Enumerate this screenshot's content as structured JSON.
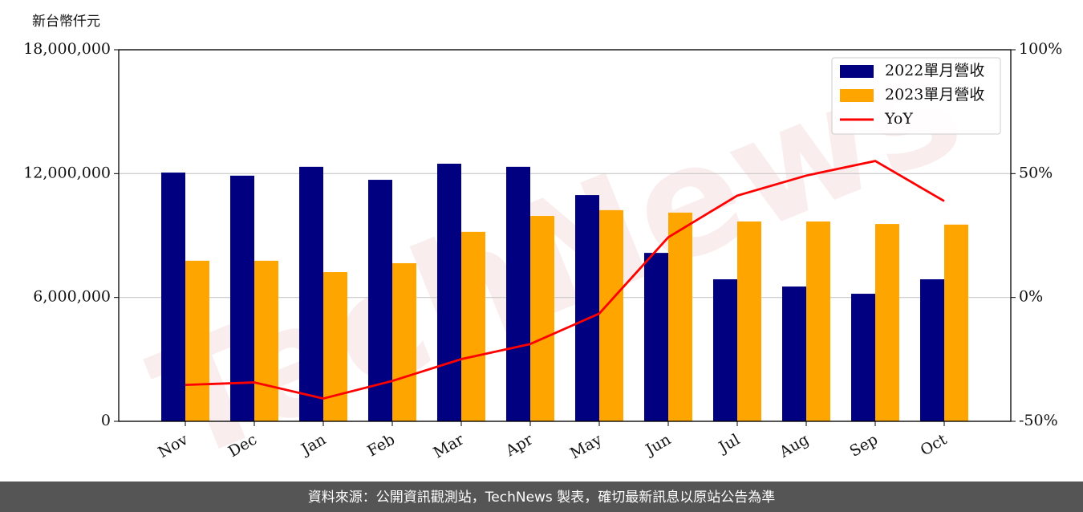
{
  "chart_data": {
    "type": "bar",
    "y_label": "新台幣仟元",
    "categories": [
      "Nov",
      "Dec",
      "Jan",
      "Feb",
      "Mar",
      "Apr",
      "May",
      "Jun",
      "Jul",
      "Aug",
      "Sep",
      "Oct"
    ],
    "series": [
      {
        "name": "2022單月營收",
        "color": "#000080",
        "type": "bar",
        "values": [
          12050000,
          11900000,
          12330000,
          11700000,
          12480000,
          12330000,
          10960000,
          8160000,
          6880000,
          6530000,
          6180000,
          6880000
        ]
      },
      {
        "name": "2023單月營收",
        "color": "#ffa500",
        "type": "bar",
        "values": [
          7780000,
          7780000,
          7230000,
          7660000,
          9180000,
          9950000,
          10230000,
          10110000,
          9680000,
          9680000,
          9560000,
          9530000
        ]
      },
      {
        "name": "YoY",
        "color": "#ff0000",
        "type": "line",
        "axis": "y2",
        "values": [
          -35.3,
          -34.3,
          -40.8,
          -33.7,
          -24.9,
          -18.8,
          -6.5,
          24.3,
          41.1,
          49.2,
          55.1,
          38.9
        ]
      }
    ],
    "ylim": [
      0,
      18000000
    ],
    "yticks": [
      0,
      {
        "value": 6000000,
        "label": "6,000,000"
      },
      {
        "value": 12000000,
        "label": "12,000,000"
      },
      {
        "value": 18000000,
        "label": "18,000,000"
      }
    ],
    "y2lim": [
      -50,
      100
    ],
    "y2ticks": [
      {
        "value": -50,
        "label": "-50%"
      },
      {
        "value": 0,
        "label": "0%"
      },
      {
        "value": 50,
        "label": "50%"
      },
      {
        "value": 100,
        "label": "100%"
      }
    ],
    "grid": true,
    "legend": "upper right",
    "watermark": "TechNews",
    "footer": "資料來源：公開資訊觀測站，TechNews 製表，確切最新訊息以原站公告為準"
  }
}
